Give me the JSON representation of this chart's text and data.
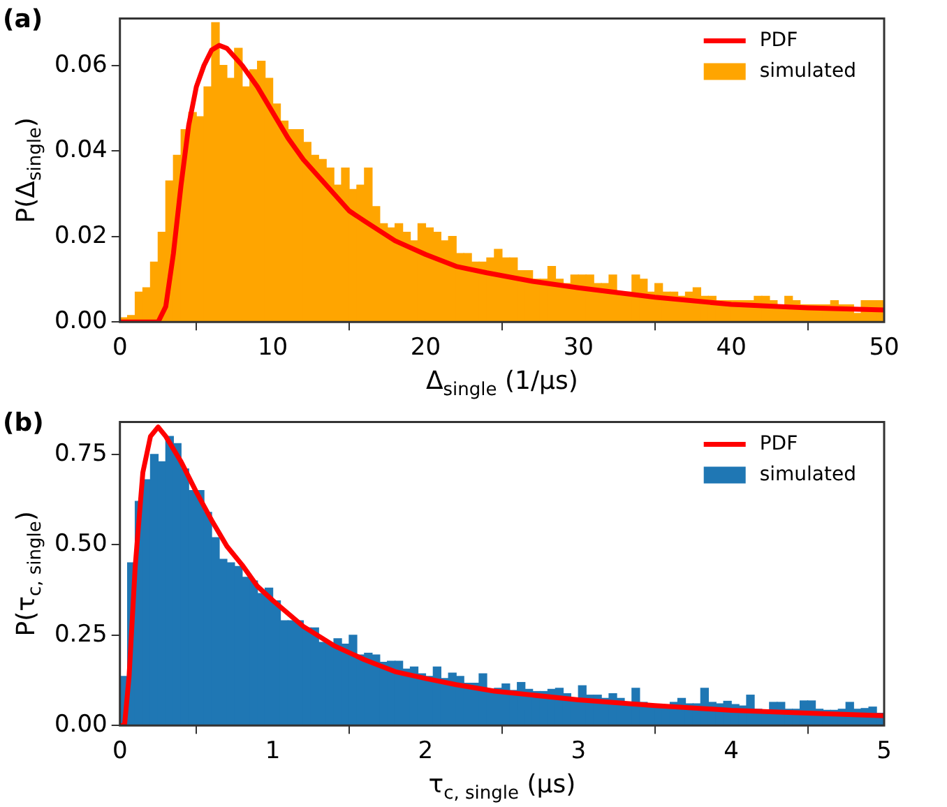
{
  "chart_data": [
    {
      "type": "histogram",
      "title": "(a)",
      "xlabel": "Δ$_{single}$ (1/μs)",
      "ylabel": "P(Δ$_{single}$)",
      "legend": "top right",
      "xlim": [
        0,
        50
      ],
      "xticks": [
        0,
        10,
        20,
        30,
        40,
        50
      ],
      "ylim": [
        0,
        0.071
      ],
      "yticks": [
        {
          "value": 0,
          "label": "0.00"
        },
        {
          "value": 0.02,
          "label": "0.02"
        },
        {
          "value": 0.04,
          "label": "0.04"
        },
        {
          "value": 0.06,
          "label": "0.06"
        }
      ],
      "bins": [
        0,
        0.5,
        1,
        1.5,
        2,
        2.5,
        3,
        3.5,
        4,
        4.5,
        5,
        5.5,
        6,
        6.5,
        7,
        7.5,
        8,
        8.5,
        9,
        9.5,
        10,
        10.5,
        11,
        11.5,
        12,
        12.5,
        13,
        13.5,
        14,
        14.5,
        15,
        15.5,
        16,
        16.5,
        17,
        17.5,
        18,
        18.5,
        19,
        19.5,
        20,
        20.5,
        21,
        21.5,
        22,
        22.5,
        23,
        23.5,
        24,
        24.5,
        25,
        25.5,
        26,
        26.5,
        27,
        27.5,
        28,
        28.5,
        29,
        29.5,
        30,
        30.5,
        31,
        31.5,
        32,
        32.5,
        33,
        33.5,
        34,
        34.5,
        35,
        35.5,
        36,
        36.5,
        37,
        37.5,
        38,
        38.5,
        39,
        39.5,
        40,
        40.5,
        41,
        41.5,
        42,
        42.5,
        43,
        43.5,
        44,
        44.5,
        45,
        45.5,
        46,
        46.5,
        47,
        47.5,
        48,
        48.5,
        49,
        49.5,
        50
      ],
      "series": [
        {
          "name": "PDF",
          "type": "line",
          "color": "#ff0000",
          "x": [
            0,
            2,
            2.5,
            3,
            3.5,
            4,
            4.5,
            5,
            5.5,
            6,
            6.5,
            7,
            8,
            9,
            10,
            11,
            12,
            13,
            14,
            15,
            16,
            18,
            20,
            22,
            24,
            27,
            30,
            35,
            40,
            45,
            50
          ],
          "values": [
            0,
            0,
            0,
            0.0036,
            0.016,
            0.032,
            0.046,
            0.055,
            0.06,
            0.0636,
            0.0647,
            0.064,
            0.06,
            0.055,
            0.049,
            0.043,
            0.038,
            0.034,
            0.03,
            0.026,
            0.0236,
            0.019,
            0.0158,
            0.013,
            0.0115,
            0.0095,
            0.008,
            0.0058,
            0.0041,
            0.0033,
            0.0028
          ]
        },
        {
          "name": "simulated",
          "color": "#ffa500",
          "values": [
            0.001,
            0.0015,
            0.007,
            0.008,
            0.014,
            0.021,
            0.033,
            0.039,
            0.045,
            0.049,
            0.048,
            0.055,
            0.07,
            0.06,
            0.057,
            0.064,
            0.055,
            0.059,
            0.061,
            0.057,
            0.051,
            0.047,
            0.045,
            0.045,
            0.042,
            0.039,
            0.038,
            0.036,
            0.032,
            0.036,
            0.031,
            0.032,
            0.036,
            0.027,
            0.023,
            0.022,
            0.023,
            0.021,
            0.019,
            0.023,
            0.022,
            0.021,
            0.019,
            0.02,
            0.016,
            0.016,
            0.014,
            0.014,
            0.015,
            0.017,
            0.015,
            0.015,
            0.012,
            0.012,
            0.01,
            0.01,
            0.013,
            0.01,
            0.009,
            0.011,
            0.011,
            0.011,
            0.009,
            0.009,
            0.011,
            0.007,
            0.007,
            0.011,
            0.01,
            0.007,
            0.009,
            0.007,
            0.007,
            0.006,
            0.007,
            0.008,
            0.006,
            0.006,
            0.005,
            0.005,
            0.005,
            0.005,
            0.005,
            0.006,
            0.006,
            0.005,
            0.004,
            0.006,
            0.005,
            0.004,
            0.004,
            0.004,
            0.004,
            0.005,
            0.004,
            0.004,
            0.002,
            0.005,
            0.005,
            0.005
          ]
        }
      ]
    },
    {
      "type": "histogram",
      "title": "(b)",
      "xlabel": "τ$_{c, single}$ (μs)",
      "ylabel": "P(τ$_{c, single}$)",
      "legend": "top right",
      "xlim": [
        0,
        5
      ],
      "xticks": [
        0,
        1,
        2,
        3,
        4,
        5
      ],
      "ylim": [
        0,
        0.84
      ],
      "yticks": [
        {
          "value": 0,
          "label": "0.00"
        },
        {
          "value": 0.25,
          "label": "0.25"
        },
        {
          "value": 0.5,
          "label": "0.50"
        },
        {
          "value": 0.75,
          "label": "0.75"
        }
      ],
      "bins": [
        0,
        0.05,
        0.1,
        0.15,
        0.2,
        0.25,
        0.3,
        0.35,
        0.4,
        0.45,
        0.5,
        0.55,
        0.6,
        0.65,
        0.7,
        0.75,
        0.8,
        0.85,
        0.9,
        0.95,
        1,
        1.05,
        1.1,
        1.15,
        1.2,
        1.25,
        1.3,
        1.35,
        1.4,
        1.45,
        1.5,
        1.55,
        1.6,
        1.65,
        1.7,
        1.75,
        1.8,
        1.85,
        1.9,
        1.95,
        2,
        2.05,
        2.1,
        2.15,
        2.2,
        2.25,
        2.3,
        2.35,
        2.4,
        2.45,
        2.5,
        2.55,
        2.6,
        2.65,
        2.7,
        2.75,
        2.8,
        2.85,
        2.9,
        2.95,
        3,
        3.05,
        3.1,
        3.15,
        3.2,
        3.25,
        3.3,
        3.35,
        3.4,
        3.45,
        3.5,
        3.55,
        3.6,
        3.65,
        3.7,
        3.75,
        3.8,
        3.85,
        3.9,
        3.95,
        4,
        4.05,
        4.1,
        4.15,
        4.2,
        4.25,
        4.3,
        4.35,
        4.4,
        4.45,
        4.5,
        4.55,
        4.6,
        4.65,
        4.7,
        4.75,
        4.8,
        4.85,
        4.9,
        4.95,
        5
      ],
      "series": [
        {
          "name": "PDF",
          "type": "line",
          "color": "#ff0000",
          "x": [
            0,
            0.03,
            0.06,
            0.1,
            0.15,
            0.2,
            0.25,
            0.3,
            0.4,
            0.5,
            0.6,
            0.7,
            0.8,
            0.9,
            1,
            1.2,
            1.4,
            1.6,
            1.8,
            2,
            2.2,
            2.45,
            3,
            3.5,
            4,
            4.5,
            5
          ],
          "values": [
            0,
            0,
            0.136,
            0.44,
            0.7,
            0.8,
            0.826,
            0.8,
            0.73,
            0.646,
            0.568,
            0.496,
            0.444,
            0.385,
            0.346,
            0.274,
            0.221,
            0.182,
            0.149,
            0.13,
            0.113,
            0.095,
            0.071,
            0.055,
            0.042,
            0.034,
            0.027
          ]
        },
        {
          "name": "simulated",
          "color": "#1f77b4",
          "values": [
            0.136,
            0.45,
            0.62,
            0.68,
            0.75,
            0.73,
            0.8,
            0.78,
            0.71,
            0.65,
            0.65,
            0.59,
            0.52,
            0.46,
            0.45,
            0.44,
            0.41,
            0.4,
            0.365,
            0.38,
            0.345,
            0.29,
            0.29,
            0.29,
            0.27,
            0.27,
            0.23,
            0.225,
            0.24,
            0.225,
            0.25,
            0.195,
            0.2,
            0.195,
            0.175,
            0.178,
            0.178,
            0.156,
            0.162,
            0.143,
            0.136,
            0.162,
            0.13,
            0.145,
            0.136,
            0.117,
            0.117,
            0.143,
            0.1,
            0.103,
            0.115,
            0.097,
            0.119,
            0.1,
            0.094,
            0.094,
            0.1,
            0.103,
            0.088,
            0.075,
            0.11,
            0.084,
            0.084,
            0.075,
            0.088,
            0.075,
            0.062,
            0.103,
            0.064,
            0.058,
            0.058,
            0.055,
            0.064,
            0.075,
            0.06,
            0.06,
            0.103,
            0.064,
            0.06,
            0.067,
            0.058,
            0.054,
            0.084,
            0.045,
            0.042,
            0.064,
            0.064,
            0.045,
            0.045,
            0.068,
            0.068,
            0.045,
            0.042,
            0.042,
            0.045,
            0.064,
            0.045,
            0.047,
            0.051,
            0.034
          ]
        }
      ]
    }
  ]
}
